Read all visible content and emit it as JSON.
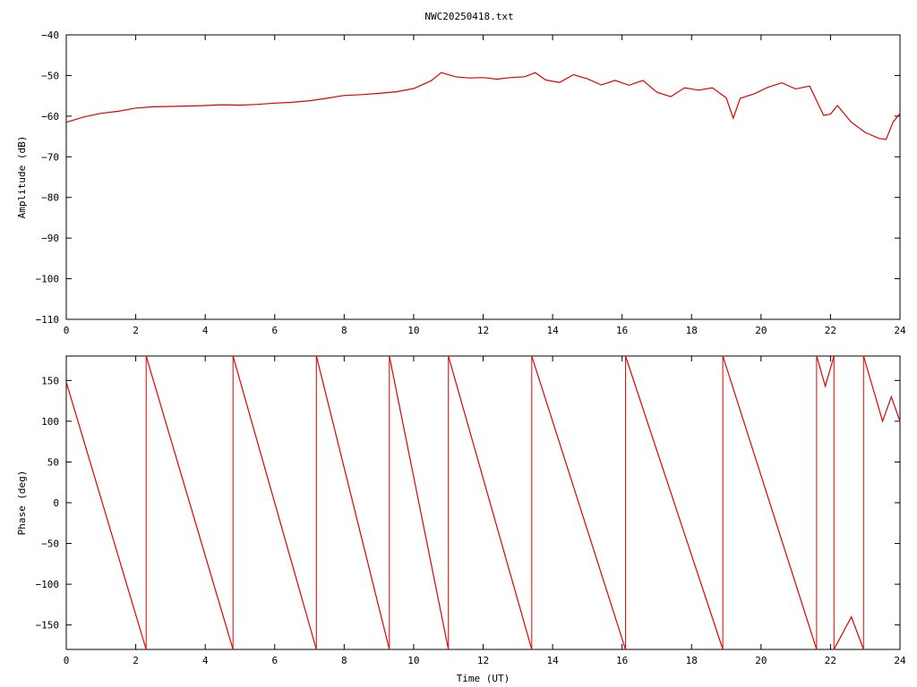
{
  "title": "NWC20250418.txt",
  "chart_data": [
    {
      "type": "line",
      "name": "amplitude",
      "title": "NWC20250418.txt",
      "xlabel": "",
      "ylabel": "Amplitude (dB)",
      "xlim": [
        0,
        24
      ],
      "ylim": [
        -110,
        -40
      ],
      "xticks": [
        "0",
        "2",
        "4",
        "6",
        "8",
        "10",
        "12",
        "14",
        "16",
        "18",
        "20",
        "22",
        "24"
      ],
      "yticks": [
        "-40",
        "-50",
        "-60",
        "-70",
        "-80",
        "-90",
        "-100",
        "-110"
      ],
      "grid": false,
      "color": "#e00000",
      "series": [
        {
          "x": [
            0,
            0.5,
            1,
            1.5,
            2,
            2.5,
            3,
            3.5,
            4,
            4.5,
            5,
            5.5,
            6,
            6.5,
            7,
            7.5,
            8,
            8.5,
            9,
            9.5,
            10,
            10.5,
            10.8,
            11.2,
            11.6,
            12,
            12.4,
            12.8,
            13.2,
            13.5,
            13.8,
            14.2,
            14.6,
            15,
            15.4,
            15.8,
            16.2,
            16.6,
            17,
            17.4,
            17.8,
            18.2,
            18.6,
            19,
            19.2,
            19.4,
            19.8,
            20.2,
            20.6,
            21,
            21.4,
            21.8,
            22,
            22.2,
            22.6,
            23,
            23.4,
            23.6,
            23.8,
            24
          ],
          "values": [
            -61.5,
            -60.2,
            -59.3,
            -58.8,
            -58.0,
            -57.7,
            -57.6,
            -57.5,
            -57.4,
            -57.2,
            -57.3,
            -57.1,
            -56.8,
            -56.6,
            -56.2,
            -55.6,
            -54.9,
            -54.7,
            -54.4,
            -54.0,
            -53.2,
            -51.3,
            -49.3,
            -50.3,
            -50.6,
            -50.5,
            -50.9,
            -50.5,
            -50.3,
            -49.3,
            -51.1,
            -51.7,
            -49.8,
            -50.8,
            -52.3,
            -51.2,
            -52.4,
            -51.2,
            -54.1,
            -55.2,
            -53.0,
            -53.6,
            -53.0,
            -55.5,
            -60.5,
            -55.6,
            -54.5,
            -52.9,
            -51.8,
            -53.3,
            -52.6,
            -59.8,
            -59.5,
            -57.4,
            -61.5,
            -64.0,
            -65.5,
            -65.7,
            -61.5,
            -59.3
          ]
        }
      ]
    },
    {
      "type": "line",
      "name": "phase",
      "title": "",
      "xlabel": "Time (UT)",
      "ylabel": "Phase (deg)",
      "xlim": [
        0,
        24
      ],
      "ylim": [
        -180,
        180
      ],
      "xticks": [
        "0",
        "2",
        "4",
        "6",
        "8",
        "10",
        "12",
        "14",
        "16",
        "18",
        "20",
        "22",
        "24"
      ],
      "yticks": [
        "150",
        "100",
        "50",
        "0",
        "-50",
        "-100",
        "-150"
      ],
      "grid": false,
      "color": "#e00000",
      "segments": [
        {
          "x": [
            0,
            2.3
          ],
          "values": [
            148,
            -180
          ]
        },
        {
          "x": [
            2.3,
            4.8
          ],
          "values": [
            180,
            -180
          ]
        },
        {
          "x": [
            4.8,
            7.2
          ],
          "values": [
            180,
            -180
          ]
        },
        {
          "x": [
            7.2,
            9.3
          ],
          "values": [
            180,
            -180
          ]
        },
        {
          "x": [
            9.3,
            11.0
          ],
          "values": [
            180,
            -180
          ]
        },
        {
          "x": [
            11.0,
            13.4
          ],
          "values": [
            180,
            -180
          ]
        },
        {
          "x": [
            13.4,
            16.1
          ],
          "values": [
            180,
            -180
          ]
        },
        {
          "x": [
            16.1,
            18.9
          ],
          "values": [
            180,
            -180
          ]
        },
        {
          "x": [
            18.9,
            21.6
          ],
          "values": [
            180,
            -180
          ]
        },
        {
          "x": [
            21.6,
            21.85,
            22.1
          ],
          "values": [
            180,
            143,
            180
          ]
        },
        {
          "x": [
            22.1,
            22.6,
            22.95
          ],
          "values": [
            -180,
            -140,
            -180
          ]
        },
        {
          "x": [
            22.95,
            23.5,
            23.75,
            24
          ],
          "values": [
            180,
            100,
            130,
            100
          ]
        }
      ]
    }
  ]
}
